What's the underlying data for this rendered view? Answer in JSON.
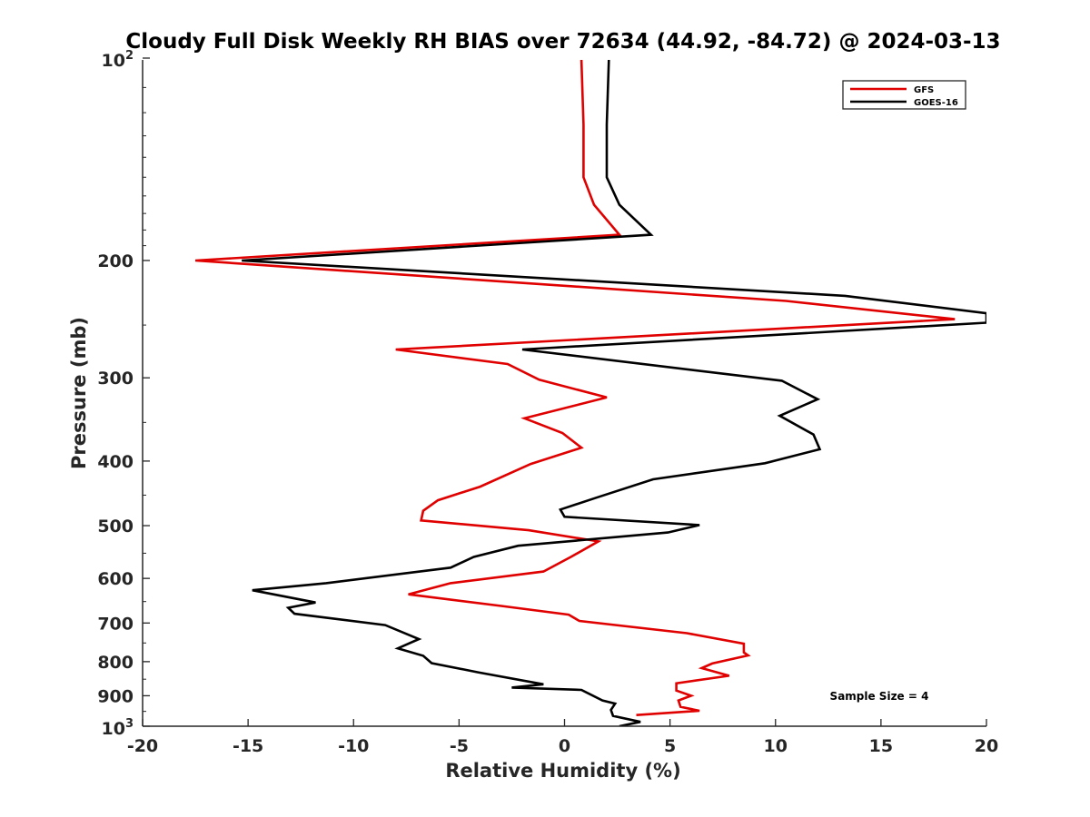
{
  "chart_data": {
    "type": "line",
    "title": "Cloudy Full Disk Weekly RH BIAS over 72634 (44.92, -84.72) @ 2024-03-13",
    "xlabel": "Relative Humidity (%)",
    "ylabel": "Pressure (mb)",
    "xlim": [
      -20,
      20
    ],
    "ylim": [
      100,
      1000
    ],
    "y_scale": "log",
    "y_reversed": true,
    "grid": false,
    "legend_position": "top-right",
    "x_ticks": [
      "-20",
      "-15",
      "-10",
      "-5",
      "0",
      "5",
      "10",
      "15",
      "20"
    ],
    "y_ticks": [
      "200",
      "300",
      "400",
      "500",
      "600",
      "700",
      "800",
      "900"
    ],
    "y_tick_top": {
      "base": "10",
      "exp": "2"
    },
    "y_tick_bottom": {
      "base": "10",
      "exp": "3"
    },
    "annotation": "Sample Size = 4",
    "series": [
      {
        "name": "GFS",
        "color": "#e00000",
        "points": [
          [
            0.8,
            100
          ],
          [
            0.9,
            125
          ],
          [
            0.9,
            150
          ],
          [
            1.4,
            165
          ],
          [
            2.6,
            183
          ],
          [
            -17.5,
            200
          ],
          [
            10.5,
            230
          ],
          [
            18.5,
            245
          ],
          [
            -8.0,
            272
          ],
          [
            -2.7,
            286
          ],
          [
            -1.2,
            302
          ],
          [
            2.0,
            321
          ],
          [
            -1.9,
            345
          ],
          [
            -0.1,
            363
          ],
          [
            0.8,
            382
          ],
          [
            -1.6,
            404
          ],
          [
            -4.0,
            437
          ],
          [
            -6.0,
            458
          ],
          [
            -6.7,
            475
          ],
          [
            -6.8,
            491
          ],
          [
            -1.7,
            508
          ],
          [
            1.6,
            528
          ],
          [
            0.3,
            557
          ],
          [
            -1.0,
            586
          ],
          [
            -5.4,
            610
          ],
          [
            -7.4,
            634
          ],
          [
            -3.0,
            660
          ],
          [
            0.2,
            680
          ],
          [
            0.7,
            695
          ],
          [
            5.8,
            725
          ],
          [
            8.5,
            752
          ],
          [
            8.5,
            775
          ],
          [
            8.7,
            783
          ],
          [
            7.0,
            805
          ],
          [
            6.5,
            818
          ],
          [
            7.8,
            840
          ],
          [
            5.3,
            862
          ],
          [
            5.3,
            884
          ],
          [
            6.0,
            900
          ],
          [
            5.4,
            915
          ],
          [
            5.5,
            935
          ],
          [
            6.4,
            948
          ],
          [
            3.4,
            962
          ]
        ]
      },
      {
        "name": "GOES-16",
        "color": "#000000",
        "points": [
          [
            2.1,
            100
          ],
          [
            2.0,
            125
          ],
          [
            2.0,
            150
          ],
          [
            2.6,
            165
          ],
          [
            4.1,
            183
          ],
          [
            -15.3,
            200
          ],
          [
            13.3,
            226
          ],
          [
            20.0,
            240
          ],
          [
            20.0,
            248
          ],
          [
            -2.0,
            272
          ],
          [
            10.3,
            303
          ],
          [
            12.0,
            323
          ],
          [
            10.2,
            342
          ],
          [
            11.8,
            365
          ],
          [
            12.1,
            384
          ],
          [
            9.5,
            403
          ],
          [
            4.2,
            426
          ],
          [
            1.5,
            454
          ],
          [
            -0.2,
            473
          ],
          [
            0.0,
            485
          ],
          [
            6.4,
            499
          ],
          [
            4.9,
            512
          ],
          [
            -2.2,
            536
          ],
          [
            -4.3,
            557
          ],
          [
            -5.4,
            578
          ],
          [
            -11.3,
            610
          ],
          [
            -14.8,
            625
          ],
          [
            -11.8,
            652
          ],
          [
            -13.1,
            664
          ],
          [
            -12.8,
            678
          ],
          [
            -8.5,
            705
          ],
          [
            -6.9,
            740
          ],
          [
            -7.9,
            764
          ],
          [
            -6.7,
            784
          ],
          [
            -6.3,
            804
          ],
          [
            -4.1,
            830
          ],
          [
            -1.0,
            865
          ],
          [
            -2.5,
            875
          ],
          [
            0.8,
            882
          ],
          [
            1.8,
            915
          ],
          [
            2.4,
            925
          ],
          [
            2.2,
            945
          ],
          [
            2.3,
            965
          ],
          [
            3.6,
            985
          ],
          [
            2.6,
            1000
          ]
        ]
      }
    ]
  }
}
